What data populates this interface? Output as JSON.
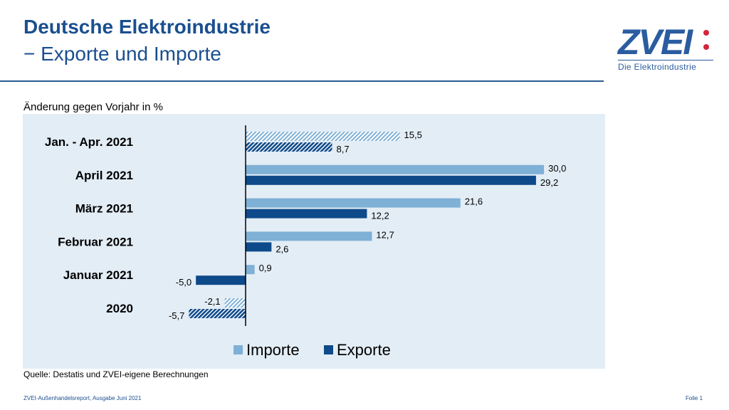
{
  "header": {
    "title": "Deutsche Elektroindustrie",
    "subtitle": "− Exporte und Importe"
  },
  "logo": {
    "text": "ZVEI",
    "tagline": "Die Elektroindustrie",
    "colors": {
      "blue": "#2a5ca0",
      "red": "#d3263d"
    }
  },
  "source": "Quelle: Destatis und ZVEI-eigene Berechnungen",
  "footer": {
    "left": "ZVEI-Außenhandelsreport, Ausgabe Juni 2021",
    "right": "Folie 1"
  },
  "chart_data": {
    "type": "bar",
    "orientation": "horizontal",
    "unit_label": "Änderung gegen Vorjahr in %",
    "categories": [
      "Jan. - Apr. 2021",
      "April 2021",
      "März 2021",
      "Februar 2021",
      "Januar 2021",
      "2020"
    ],
    "series": [
      {
        "name": "Importe",
        "color": "#7fb0d6",
        "values": [
          15.5,
          30.0,
          21.6,
          12.7,
          0.9,
          -2.1
        ],
        "labels": [
          "15,5",
          "30,0",
          "21,6",
          "12,7",
          "0,9",
          "-2,1"
        ]
      },
      {
        "name": "Exporte",
        "color": "#0e4a8a",
        "values": [
          8.7,
          29.2,
          12.2,
          2.6,
          -5.0,
          -5.7
        ],
        "labels": [
          "8,7",
          "29,2",
          "12,2",
          "2,6",
          "-5,0",
          "-5,7"
        ]
      }
    ],
    "hatched_categories": [
      "Jan. - Apr. 2021",
      "2020"
    ],
    "legend": "bottom",
    "grid": false
  }
}
